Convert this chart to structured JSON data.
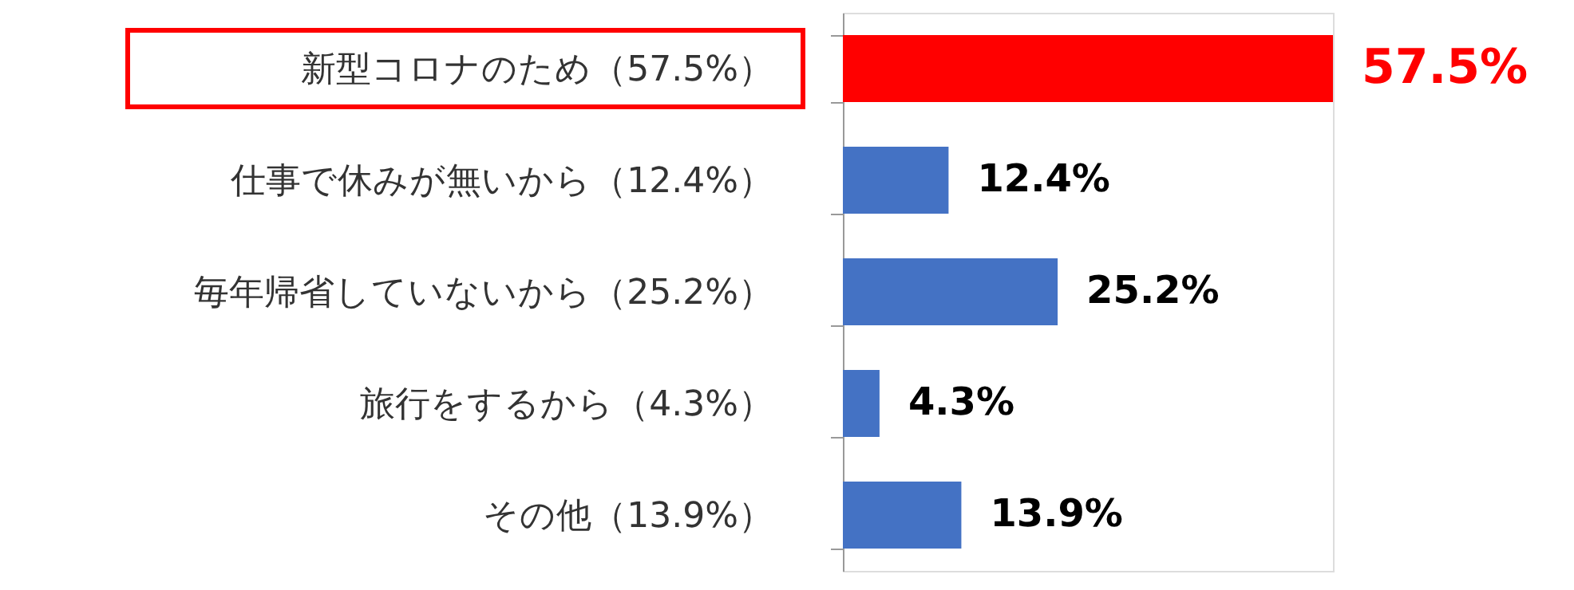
{
  "chart_data": {
    "type": "bar",
    "orientation": "horizontal",
    "categories": [
      "新型コロナのため（57.5%）",
      "仕事で休みが無いから（12.4%）",
      "毎年帰省していないから（25.2%）",
      "旅行をするから（4.3%）",
      "その他（13.9%）"
    ],
    "values": [
      57.5,
      12.4,
      25.2,
      4.3,
      13.9
    ],
    "colors": [
      "#ff0000",
      "#4472c4",
      "#4472c4",
      "#4472c4",
      "#4472c4"
    ],
    "value_labels": [
      "57.5%",
      "12.4%",
      "25.2%",
      "4.3%",
      "13.9%"
    ],
    "tick_labels": "y"
  }
}
